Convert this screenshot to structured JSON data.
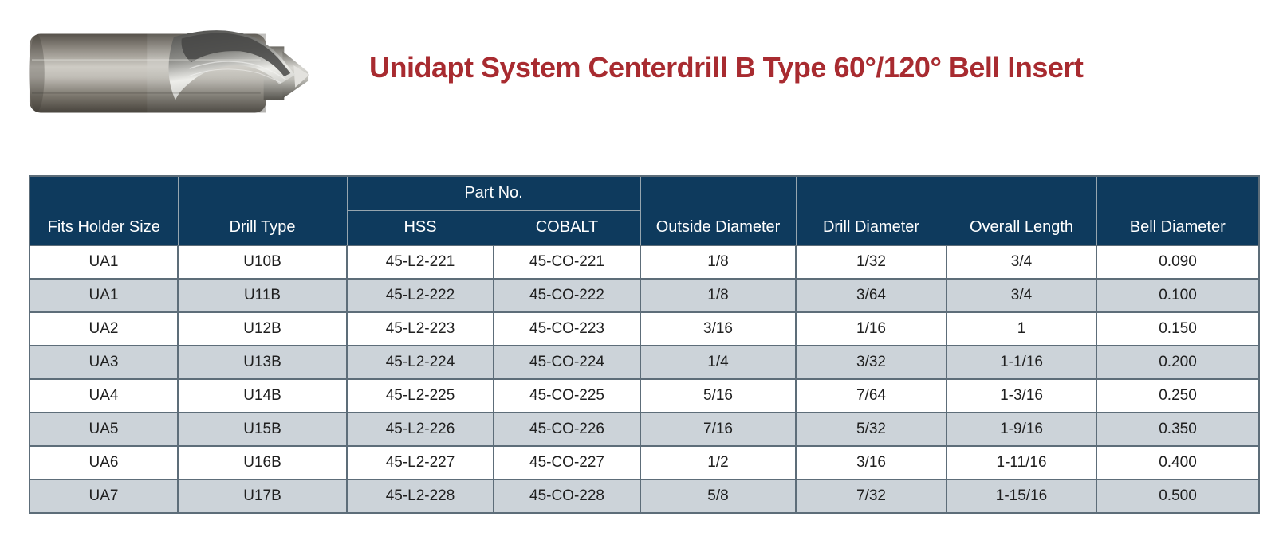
{
  "page": {
    "title": "Unidapt System Centerdrill B Type 60°/120° Bell Insert"
  },
  "colors": {
    "title_red": "#a82b30",
    "header_navy": "#0e3a5d",
    "alt_row": "#ccd3d9",
    "grid_border": "#5d6d79",
    "cell_text": "#1f1f1f",
    "header_text": "#ffffff"
  },
  "product_photo": {
    "icon_name": "centerdrill-bell-insert-photo"
  },
  "table": {
    "headers": {
      "fits_holder_size": "Fits Holder Size",
      "drill_type": "Drill Type",
      "part_no": "Part No.",
      "hss": "HSS",
      "cobalt": "COBALT",
      "outside_diameter": "Outside Diameter",
      "drill_diameter": "Drill Diameter",
      "overall_length": "Overall Length",
      "bell_diameter": "Bell Diameter"
    },
    "columns_order": [
      "fits_holder_size",
      "drill_type",
      "hss",
      "cobalt",
      "outside_diameter",
      "drill_diameter",
      "overall_length",
      "bell_diameter"
    ],
    "rows": [
      {
        "fits_holder_size": "UA1",
        "drill_type": "U10B",
        "hss": "45-L2-221",
        "cobalt": "45-CO-221",
        "outside_diameter": "1/8",
        "drill_diameter": "1/32",
        "overall_length": "3/4",
        "bell_diameter": "0.090"
      },
      {
        "fits_holder_size": "UA1",
        "drill_type": "U11B",
        "hss": "45-L2-222",
        "cobalt": "45-CO-222",
        "outside_diameter": "1/8",
        "drill_diameter": "3/64",
        "overall_length": "3/4",
        "bell_diameter": "0.100"
      },
      {
        "fits_holder_size": "UA2",
        "drill_type": "U12B",
        "hss": "45-L2-223",
        "cobalt": "45-CO-223",
        "outside_diameter": "3/16",
        "drill_diameter": "1/16",
        "overall_length": "1",
        "bell_diameter": "0.150"
      },
      {
        "fits_holder_size": "UA3",
        "drill_type": "U13B",
        "hss": "45-L2-224",
        "cobalt": "45-CO-224",
        "outside_diameter": "1/4",
        "drill_diameter": "3/32",
        "overall_length": "1-1/16",
        "bell_diameter": "0.200"
      },
      {
        "fits_holder_size": "UA4",
        "drill_type": "U14B",
        "hss": "45-L2-225",
        "cobalt": "45-CO-225",
        "outside_diameter": "5/16",
        "drill_diameter": "7/64",
        "overall_length": "1-3/16",
        "bell_diameter": "0.250"
      },
      {
        "fits_holder_size": "UA5",
        "drill_type": "U15B",
        "hss": "45-L2-226",
        "cobalt": "45-CO-226",
        "outside_diameter": "7/16",
        "drill_diameter": "5/32",
        "overall_length": "1-9/16",
        "bell_diameter": "0.350"
      },
      {
        "fits_holder_size": "UA6",
        "drill_type": "U16B",
        "hss": "45-L2-227",
        "cobalt": "45-CO-227",
        "outside_diameter": "1/2",
        "drill_diameter": "3/16",
        "overall_length": "1-11/16",
        "bell_diameter": "0.400"
      },
      {
        "fits_holder_size": "UA7",
        "drill_type": "U17B",
        "hss": "45-L2-228",
        "cobalt": "45-CO-228",
        "outside_diameter": "5/8",
        "drill_diameter": "7/32",
        "overall_length": "1-15/16",
        "bell_diameter": "0.500"
      }
    ]
  }
}
